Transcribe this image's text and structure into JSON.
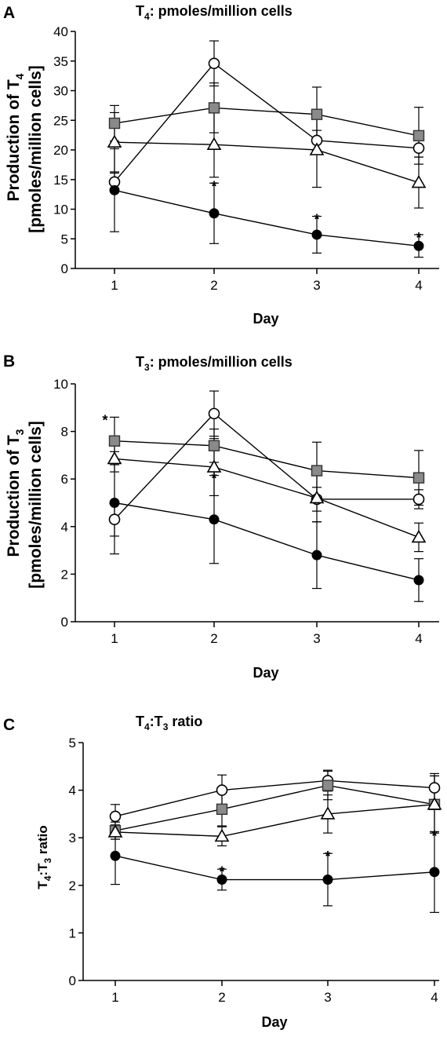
{
  "chart_data": [
    {
      "type": "line",
      "panel": "A",
      "title": "T4: pmoles/million cells",
      "title_parts": [
        "T",
        "4",
        ": pmoles/million cells"
      ],
      "ylabel_line1_parts": [
        "Production of T",
        "4"
      ],
      "ylabel_line2": "[pmoles/million cells]",
      "xlabel": "Day",
      "x": [
        1,
        2,
        3,
        4
      ],
      "ylim": [
        0,
        40
      ],
      "yticks": [
        0,
        5,
        10,
        15,
        20,
        25,
        30,
        35,
        40
      ],
      "series": [
        {
          "marker": "square-gray",
          "values": [
            24.5,
            27.1,
            26.0,
            22.4
          ],
          "err": [
            3.0,
            4.2,
            4.6,
            4.8
          ]
        },
        {
          "marker": "circle-open",
          "values": [
            14.6,
            34.6,
            21.6,
            20.3
          ],
          "err": [
            1.5,
            3.8,
            1.7,
            1.5
          ]
        },
        {
          "marker": "triangle-open",
          "values": [
            21.3,
            20.9,
            20.0,
            14.5
          ],
          "err": [
            5.0,
            5.5,
            6.3,
            4.3
          ]
        },
        {
          "marker": "circle-filled",
          "values": [
            13.2,
            9.3,
            5.7,
            3.8
          ],
          "err": [
            7.0,
            5.1,
            3.1,
            1.9
          ]
        }
      ],
      "annotations": [
        {
          "x": 2,
          "y": 14.4,
          "text": "*"
        },
        {
          "x": 3,
          "y": 8.8,
          "text": "*"
        },
        {
          "x": 4,
          "y": 5.7,
          "text": "*"
        }
      ]
    },
    {
      "type": "line",
      "panel": "B",
      "title": "T3: pmoles/million cells",
      "title_parts": [
        "T",
        "3",
        ": pmoles/million cells"
      ],
      "ylabel_line1_parts": [
        "Production of T",
        "3"
      ],
      "ylabel_line2": "[pmoles/million cells]",
      "xlabel": "Day",
      "x": [
        1,
        2,
        3,
        4
      ],
      "ylim": [
        0,
        10
      ],
      "yticks": [
        0,
        2,
        4,
        6,
        8,
        10
      ],
      "series": [
        {
          "marker": "square-gray",
          "values": [
            7.6,
            7.4,
            6.35,
            6.05
          ],
          "err": [
            1.0,
            0.7,
            1.2,
            1.15
          ]
        },
        {
          "marker": "circle-open",
          "values": [
            4.3,
            8.75,
            5.15,
            5.15
          ],
          "err": [
            0.7,
            0.95,
            0.5,
            0.4
          ]
        },
        {
          "marker": "triangle-open",
          "values": [
            6.85,
            6.5,
            5.2,
            3.55
          ],
          "err": [
            0.55,
            1.2,
            1.0,
            0.6
          ]
        },
        {
          "marker": "circle-filled",
          "values": [
            5.0,
            4.3,
            2.8,
            1.75
          ],
          "err": [
            2.15,
            1.85,
            1.4,
            0.9
          ]
        }
      ],
      "annotations": [
        {
          "x": 1,
          "y": 8.6,
          "text": "*"
        },
        {
          "x": 2,
          "y": 6.15,
          "text": "*"
        }
      ]
    },
    {
      "type": "line",
      "panel": "C",
      "title": "T4:T3 ratio",
      "title_parts": [
        "T",
        "4",
        ":T",
        "3",
        " ratio"
      ],
      "ylabel_parts": [
        "T",
        "4",
        ":T",
        "3",
        " ratio"
      ],
      "xlabel": "Day",
      "x": [
        1,
        2,
        3,
        4
      ],
      "ylim": [
        0,
        5
      ],
      "yticks": [
        0,
        1,
        2,
        3,
        4,
        5
      ],
      "series": [
        {
          "marker": "circle-open",
          "values": [
            3.45,
            4.0,
            4.2,
            4.05
          ],
          "err": [
            0.25,
            0.32,
            0.22,
            0.3
          ]
        },
        {
          "marker": "square-gray",
          "values": [
            3.15,
            3.6,
            4.1,
            3.7
          ],
          "err": [
            0.18,
            0.35,
            0.3,
            0.6
          ]
        },
        {
          "marker": "triangle-open",
          "values": [
            3.12,
            3.03,
            3.5,
            3.7
          ],
          "err": [
            0.15,
            0.2,
            0.4,
            0.6
          ]
        },
        {
          "marker": "circle-filled",
          "values": [
            2.62,
            2.12,
            2.12,
            2.28
          ],
          "err": [
            0.6,
            0.22,
            0.55,
            0.85
          ]
        }
      ],
      "annotations": [
        {
          "x": 2,
          "y": 2.35,
          "text": "*"
        },
        {
          "x": 3,
          "y": 2.67,
          "text": "*"
        },
        {
          "x": 4,
          "y": 3.1,
          "text": "*"
        }
      ]
    }
  ]
}
